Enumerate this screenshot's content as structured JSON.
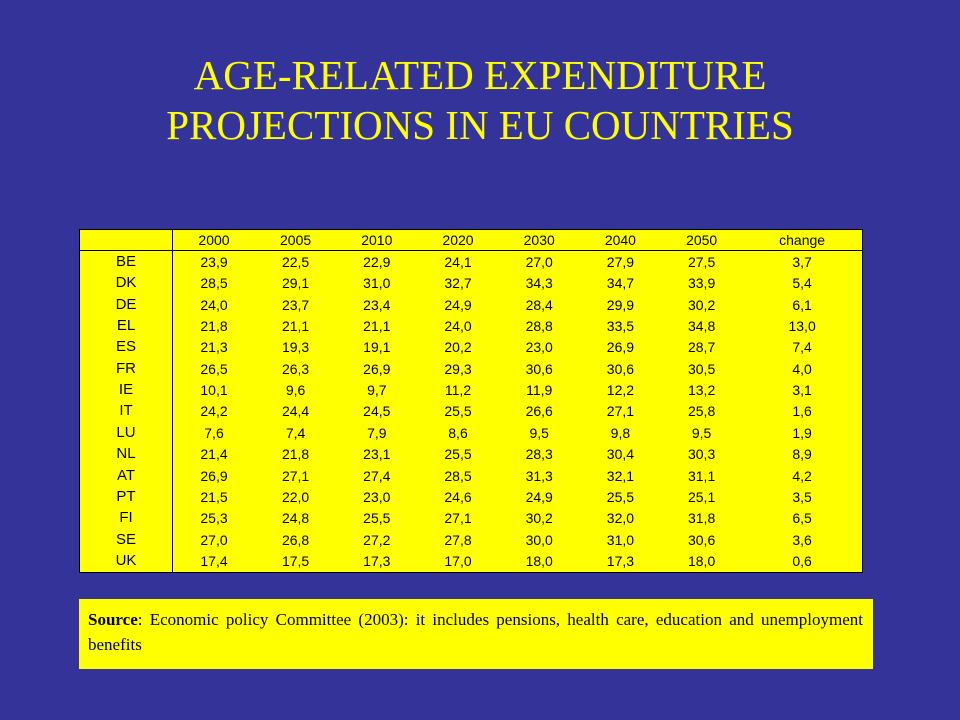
{
  "title_line1": "AGE-RELATED EXPENDITURE",
  "title_line2": "PROJECTIONS IN EU COUNTRIES",
  "table": {
    "columns": [
      "",
      "2000",
      "2005",
      "2010",
      "2020",
      "2030",
      "2040",
      "2050",
      "change"
    ],
    "rows": [
      [
        "BE",
        "23,9",
        "22,5",
        "22,9",
        "24,1",
        "27,0",
        "27,9",
        "27,5",
        "3,7"
      ],
      [
        "DK",
        "28,5",
        "29,1",
        "31,0",
        "32,7",
        "34,3",
        "34,7",
        "33,9",
        "5,4"
      ],
      [
        "DE",
        "24,0",
        "23,7",
        "23,4",
        "24,9",
        "28,4",
        "29,9",
        "30,2",
        "6,1"
      ],
      [
        "EL",
        "21,8",
        "21,1",
        "21,1",
        "24,0",
        "28,8",
        "33,5",
        "34,8",
        "13,0"
      ],
      [
        "ES",
        "21,3",
        "19,3",
        "19,1",
        "20,2",
        "23,0",
        "26,9",
        "28,7",
        "7,4"
      ],
      [
        "FR",
        "26,5",
        "26,3",
        "26,9",
        "29,3",
        "30,6",
        "30,6",
        "30,5",
        "4,0"
      ],
      [
        "IE",
        "10,1",
        "9,6",
        "9,7",
        "11,2",
        "11,9",
        "12,2",
        "13,2",
        "3,1"
      ],
      [
        "IT",
        "24,2",
        "24,4",
        "24,5",
        "25,5",
        "26,6",
        "27,1",
        "25,8",
        "1,6"
      ],
      [
        "LU",
        "7,6",
        "7,4",
        "7,9",
        "8,6",
        "9,5",
        "9,8",
        "9,5",
        "1,9"
      ],
      [
        "NL",
        "21,4",
        "21,8",
        "23,1",
        "25,5",
        "28,3",
        "30,4",
        "30,3",
        "8,9"
      ],
      [
        "AT",
        "26,9",
        "27,1",
        "27,4",
        "28,5",
        "31,3",
        "32,1",
        "31,1",
        "4,2"
      ],
      [
        "PT",
        "21,5",
        "22,0",
        "23,0",
        "24,6",
        "24,9",
        "25,5",
        "25,1",
        "3,5"
      ],
      [
        "FI",
        "25,3",
        "24,8",
        "25,5",
        "27,1",
        "30,2",
        "32,0",
        "31,8",
        "6,5"
      ],
      [
        "SE",
        "27,0",
        "26,8",
        "27,2",
        "27,8",
        "30,0",
        "31,0",
        "30,6",
        "3,6"
      ],
      [
        "UK",
        "17,4",
        "17,5",
        "17,3",
        "17,0",
        "18,0",
        "17,3",
        "18,0",
        "0,6"
      ]
    ]
  },
  "source": {
    "label": "Source",
    "text": ": Economic policy Committee (2003): it includes pensions, health care, education and unemployment benefits"
  },
  "colors": {
    "background": "#333399",
    "title": "#ffff00",
    "panel": "#ffff00"
  }
}
